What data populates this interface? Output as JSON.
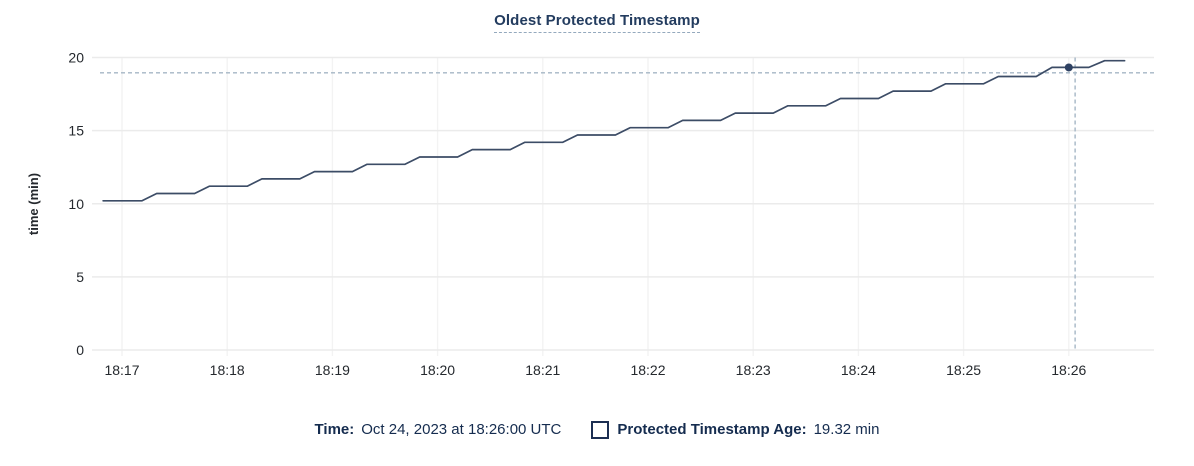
{
  "colors": {
    "accent_navy": "#1c2e52",
    "title_text": "#233c5f",
    "line": "#3c4c66",
    "dot": "#2e4162",
    "crosshair": "#a5b6c5",
    "grid_h": "#ebebeb",
    "grid_v": "#f3f3f3",
    "tick_text": "#25292e"
  },
  "legend": {
    "time_label": "Time:",
    "time_value": "Oct 24, 2023 at 18:26:00 UTC",
    "series_swatch": "square-outline",
    "series_label": "Protected Timestamp Age:",
    "series_value": "19.32 min"
  },
  "chart_data": {
    "type": "line",
    "title": "Oldest Protected Timestamp",
    "xlabel": "",
    "ylabel": "time (min)",
    "ylim": [
      0,
      20
    ],
    "y_ticks": [
      0,
      5,
      10,
      15,
      20
    ],
    "x_ticks": [
      {
        "t": 17,
        "label": "18:17"
      },
      {
        "t": 18,
        "label": "18:18"
      },
      {
        "t": 19,
        "label": "18:19"
      },
      {
        "t": 20,
        "label": "18:20"
      },
      {
        "t": 21,
        "label": "18:21"
      },
      {
        "t": 22,
        "label": "18:22"
      },
      {
        "t": 23,
        "label": "18:23"
      },
      {
        "t": 24,
        "label": "18:24"
      },
      {
        "t": 25,
        "label": "18:25"
      },
      {
        "t": 26,
        "label": "18:26"
      }
    ],
    "grid": true,
    "legend_position": "bottom",
    "series": [
      {
        "name": "Protected Timestamp Age",
        "unit": "min",
        "points": [
          [
            16.82,
            10.2
          ],
          [
            17.19,
            10.2
          ],
          [
            17.33,
            10.7
          ],
          [
            17.69,
            10.7
          ],
          [
            17.83,
            11.2
          ],
          [
            18.19,
            11.2
          ],
          [
            18.33,
            11.7
          ],
          [
            18.69,
            11.7
          ],
          [
            18.83,
            12.2
          ],
          [
            19.19,
            12.2
          ],
          [
            19.33,
            12.7
          ],
          [
            19.69,
            12.7
          ],
          [
            19.83,
            13.2
          ],
          [
            20.19,
            13.2
          ],
          [
            20.33,
            13.7
          ],
          [
            20.69,
            13.7
          ],
          [
            20.83,
            14.2
          ],
          [
            21.19,
            14.2
          ],
          [
            21.33,
            14.7
          ],
          [
            21.69,
            14.7
          ],
          [
            21.83,
            15.2
          ],
          [
            22.19,
            15.2
          ],
          [
            22.33,
            15.7
          ],
          [
            22.69,
            15.7
          ],
          [
            22.83,
            16.2
          ],
          [
            23.19,
            16.2
          ],
          [
            23.33,
            16.7
          ],
          [
            23.69,
            16.7
          ],
          [
            23.83,
            17.2
          ],
          [
            24.19,
            17.2
          ],
          [
            24.33,
            17.7
          ],
          [
            24.69,
            17.7
          ],
          [
            24.83,
            18.2
          ],
          [
            25.19,
            18.2
          ],
          [
            25.33,
            18.7
          ],
          [
            25.69,
            18.7
          ],
          [
            25.84,
            19.32
          ],
          [
            26.19,
            19.32
          ],
          [
            26.34,
            19.78
          ],
          [
            26.53,
            19.78
          ]
        ]
      }
    ],
    "cursor": {
      "crosshair_x_t": 26.06,
      "crosshair_y_value": 18.95,
      "point_t": 26.0,
      "point_value": 19.32
    }
  }
}
